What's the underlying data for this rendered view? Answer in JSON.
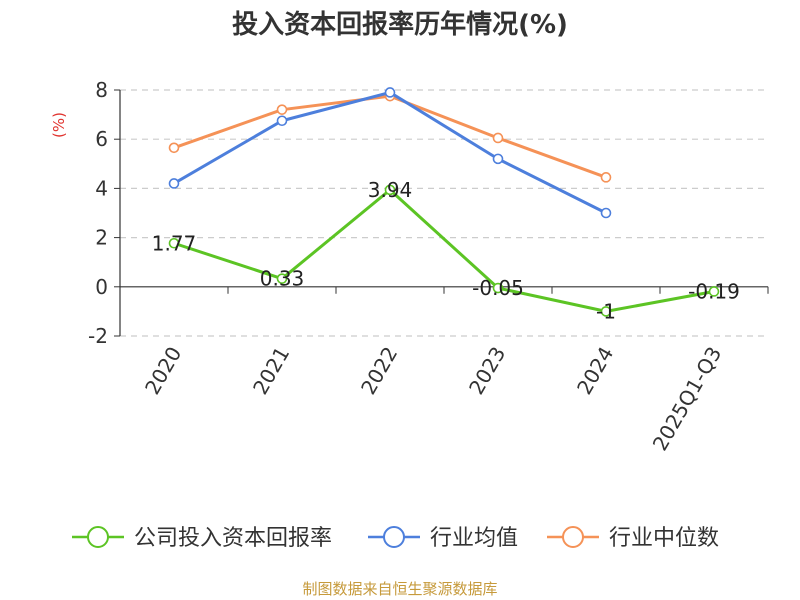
{
  "chart_data": {
    "type": "line",
    "title": "投入资本回报率历年情况(%)",
    "ylabel": "(%)",
    "categories": [
      "2020",
      "2021",
      "2022",
      "2023",
      "2024",
      "2025Q1-Q3"
    ],
    "ylim": [
      -2,
      8
    ],
    "yticks": [
      -2,
      0,
      2,
      4,
      6,
      8
    ],
    "grid": true,
    "legend_position": "bottom",
    "series": [
      {
        "name": "公司投入资本回报率",
        "color": "#5cc424",
        "values": [
          1.77,
          0.33,
          3.94,
          -0.05,
          -1,
          -0.19
        ],
        "labels": [
          "1.77",
          "0.33",
          "3.94",
          "-0.05",
          "-1",
          "-0.19"
        ]
      },
      {
        "name": "行业均值",
        "color": "#4d7fdc",
        "values": [
          4.2,
          6.75,
          7.9,
          5.2,
          3.0,
          null
        ]
      },
      {
        "name": "行业中位数",
        "color": "#f59257",
        "values": [
          5.65,
          7.2,
          7.75,
          6.05,
          4.45,
          null
        ]
      }
    ]
  },
  "source": "制图数据来自恒生聚源数据库"
}
